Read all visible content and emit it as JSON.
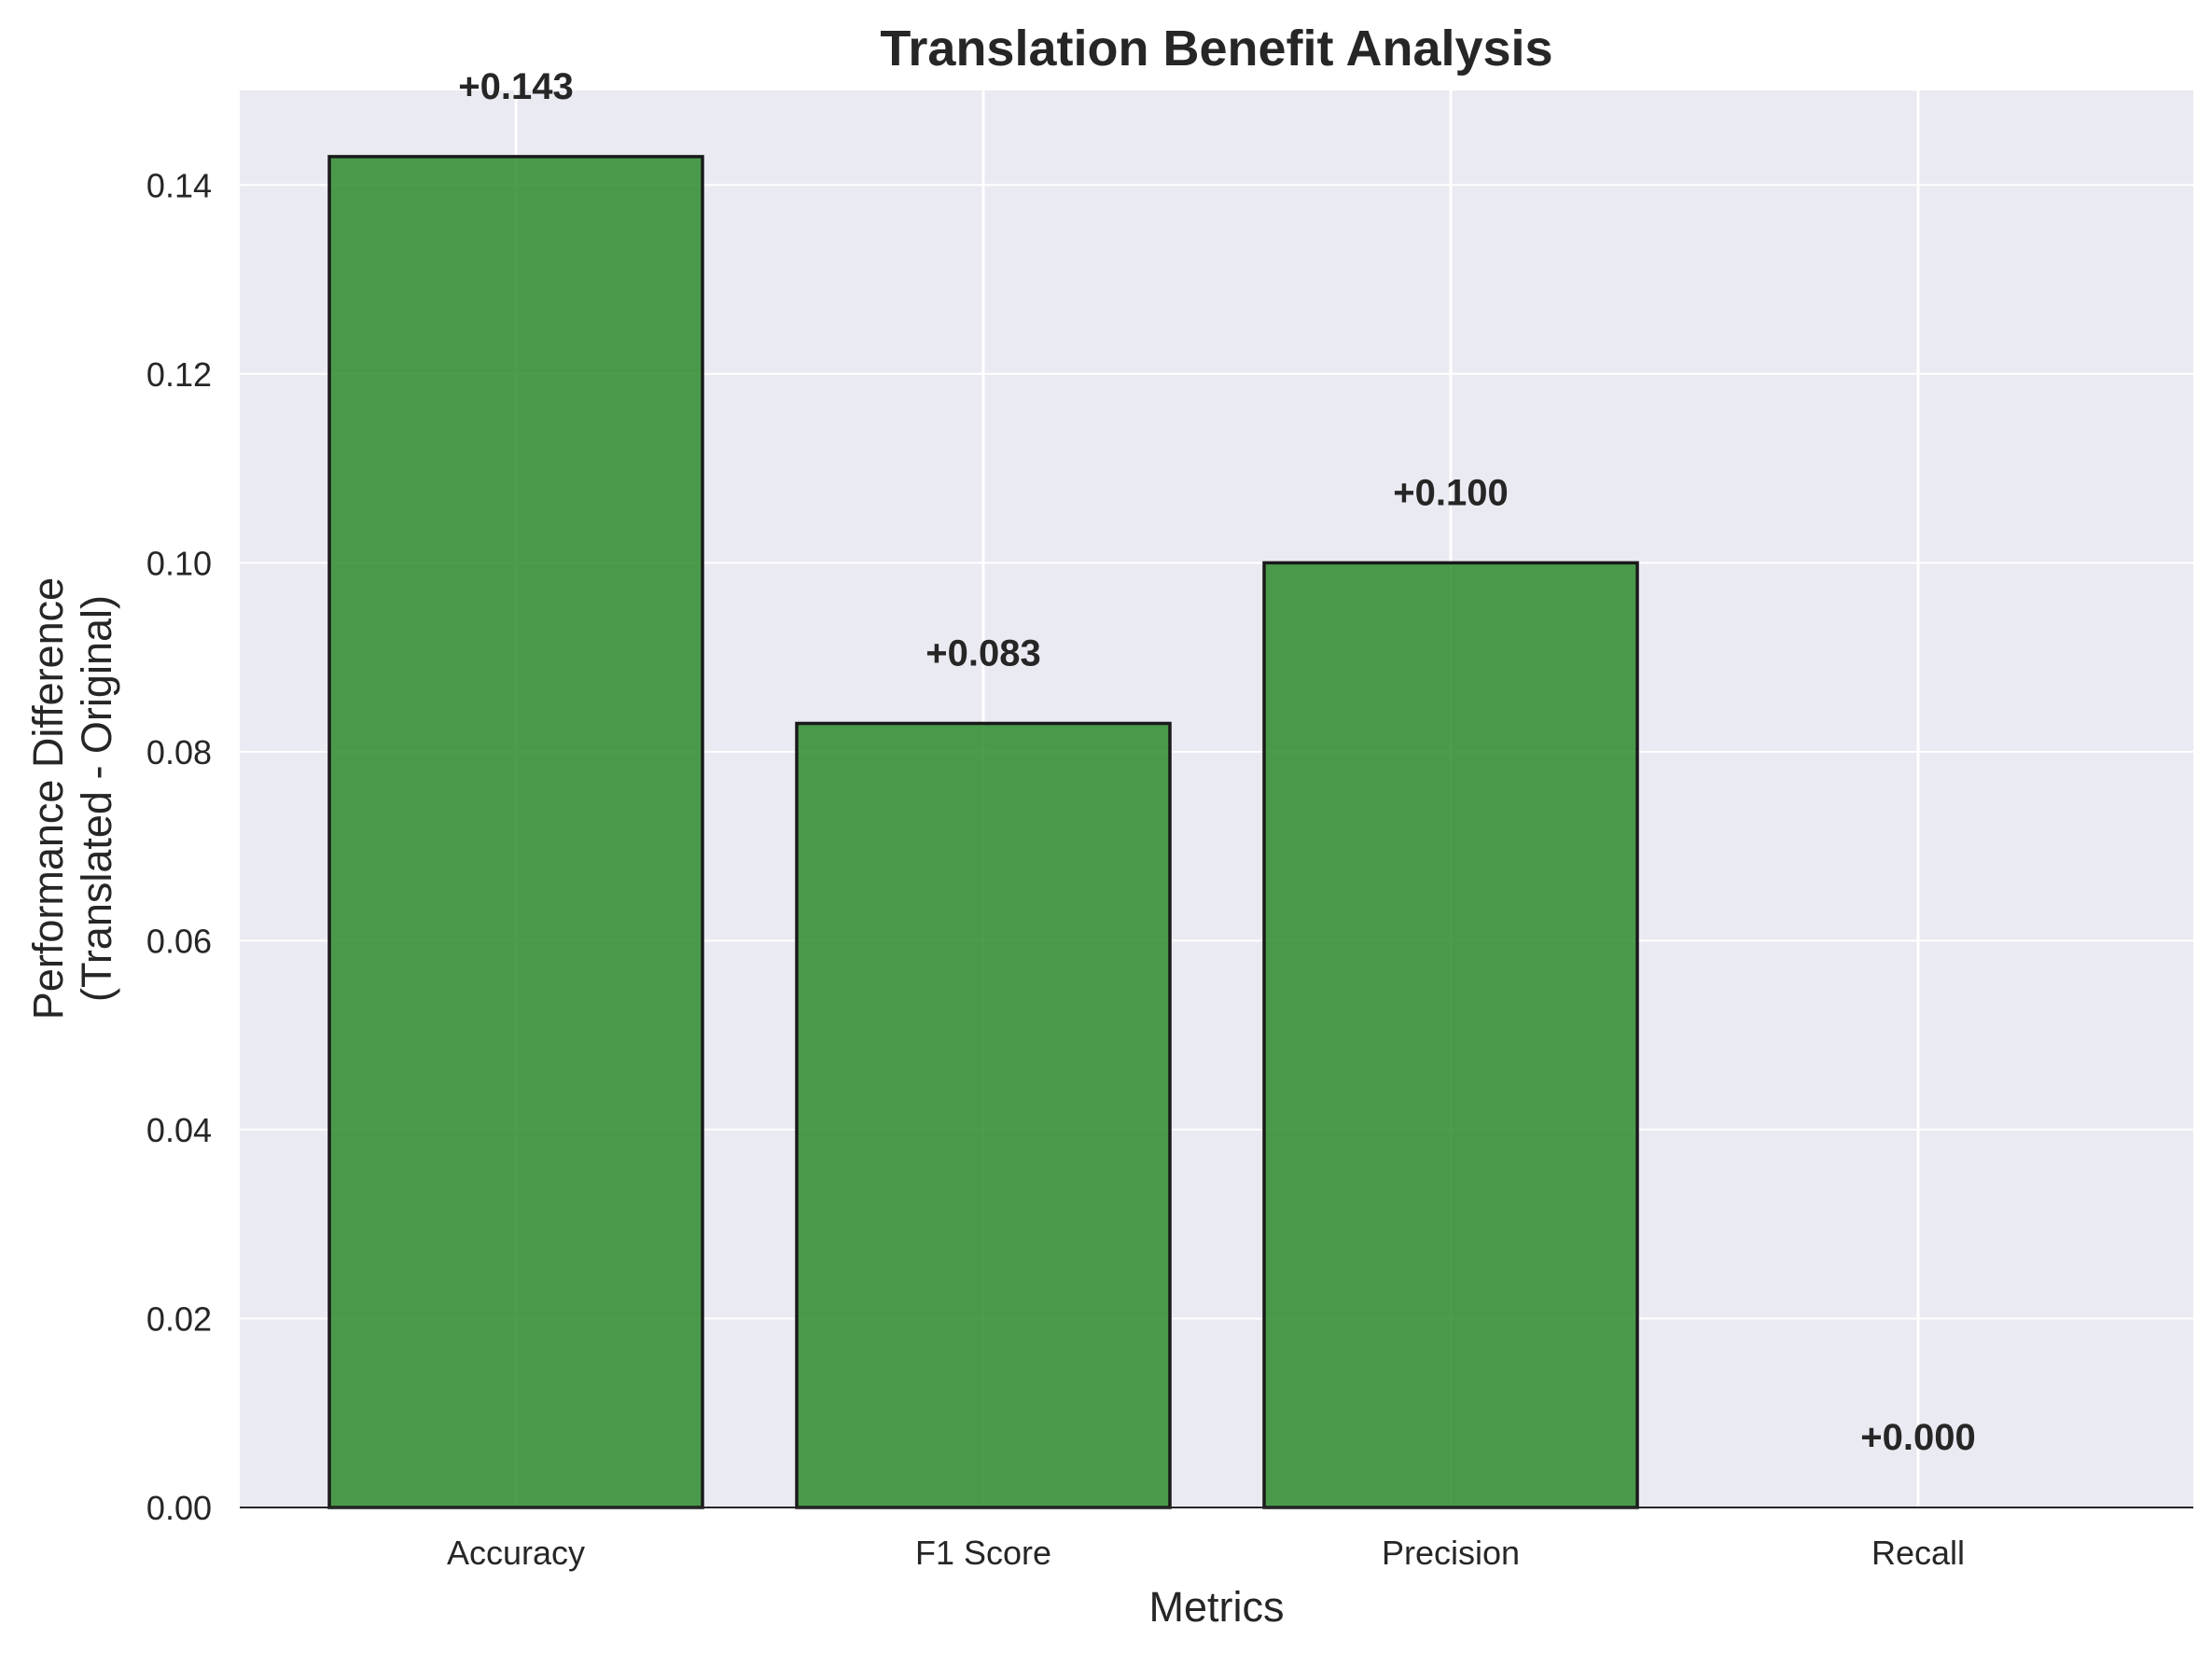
{
  "chart_data": {
    "type": "bar",
    "title": "Translation Benefit Analysis",
    "xlabel": "Metrics",
    "ylabel_lines": [
      "Performance Difference",
      "(Translated - Original)"
    ],
    "categories": [
      "Accuracy",
      "F1 Score",
      "Precision",
      "Recall"
    ],
    "values": [
      0.143,
      0.083,
      0.1,
      0.0
    ],
    "data_labels": [
      "+0.143",
      "+0.083",
      "+0.100",
      "+0.000"
    ],
    "ylim": [
      0,
      0.15
    ],
    "yticks": [
      "0.00",
      "0.02",
      "0.04",
      "0.06",
      "0.08",
      "0.10",
      "0.12",
      "0.14"
    ],
    "ytick_values": [
      0,
      0.02,
      0.04,
      0.06,
      0.08,
      0.1,
      0.12,
      0.14
    ],
    "grid": true,
    "colors": {
      "bar_fill": "#2e8b2e",
      "bar_edge": "#1a1a1a",
      "plot_background": "#eaeaf2",
      "grid": "#ffffff",
      "text": "#262626"
    }
  }
}
